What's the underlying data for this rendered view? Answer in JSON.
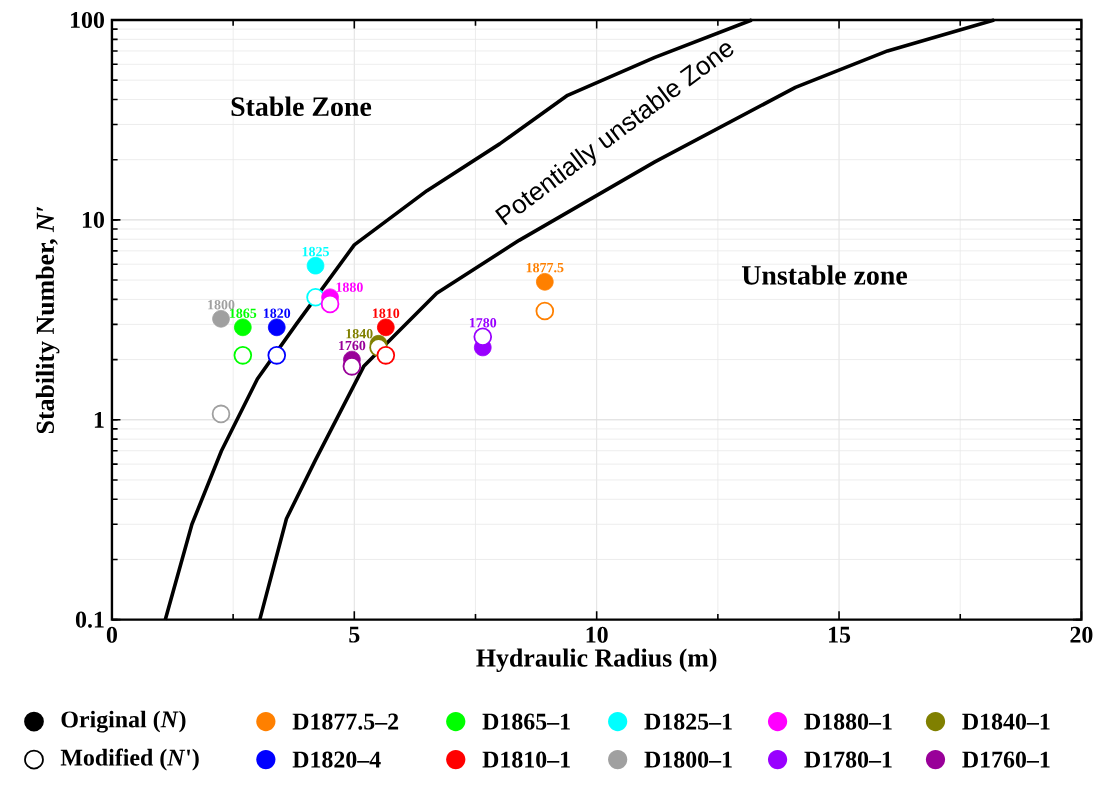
{
  "chart_data": {
    "type": "scatter",
    "xlabel": "Hydraulic Radius (m)",
    "ylabel": "Stability Number, *N*′",
    "xlim": [
      0,
      20
    ],
    "ylim": [
      0.1,
      100
    ],
    "xticks": [
      0,
      5,
      10,
      15,
      20
    ],
    "yticks": [
      0.1,
      1,
      10,
      100
    ],
    "log": "y",
    "grid": true,
    "legend": "bottom",
    "marker": "circle",
    "annotations": [
      "Original (*N*)",
      "Modified (*N*')",
      "Stable Zone",
      "Potentially unstable Zone",
      "Unstable zone",
      {
        "text": "1877.5",
        "x": 8.93,
        "y": 4.9
      },
      {
        "text": "1865",
        "x": 2.7,
        "y": 2.9
      },
      {
        "text": "1825",
        "x": 4.2,
        "y": 5.9
      },
      {
        "text": "1880",
        "x": 4.5,
        "y": 4.1
      },
      {
        "text": "1840",
        "x": 5.5,
        "y": 2.4
      },
      {
        "text": "1820",
        "x": 3.4,
        "y": 2.9
      },
      {
        "text": "1810",
        "x": 5.65,
        "y": 2.9
      },
      {
        "text": "1800",
        "x": 2.25,
        "y": 3.2
      },
      {
        "text": "1780",
        "x": 7.65,
        "y": 2.3
      },
      {
        "text": "1760",
        "x": 4.95,
        "y": 2.0
      }
    ],
    "series": [
      {
        "name": "D1877.5–2",
        "color": "#ff8000",
        "x": [
          8.93,
          8.93
        ],
        "values": [
          4.9,
          3.5
        ]
      },
      {
        "name": "D1865–1",
        "color": "#00ff00",
        "x": [
          2.7,
          2.7
        ],
        "values": [
          2.9,
          2.1
        ]
      },
      {
        "name": "D1825–1",
        "color": "#00ffff",
        "x": [
          4.2,
          4.2
        ],
        "values": [
          5.9,
          4.1
        ]
      },
      {
        "name": "D1880–1",
        "color": "#ff00ff",
        "x": [
          4.5,
          4.5
        ],
        "values": [
          4.1,
          3.8
        ]
      },
      {
        "name": "D1840–1",
        "color": "#808000",
        "x": [
          5.5,
          5.5
        ],
        "values": [
          2.4,
          2.3
        ]
      },
      {
        "name": "D1820–4",
        "color": "#0000ff",
        "x": [
          3.4,
          3.4
        ],
        "values": [
          2.9,
          2.1
        ]
      },
      {
        "name": "D1810–1",
        "color": "#ff0000",
        "x": [
          5.65,
          5.65
        ],
        "values": [
          2.9,
          2.1
        ]
      },
      {
        "name": "D1800–1",
        "color": "#a0a0a0",
        "x": [
          2.25,
          2.25
        ],
        "values": [
          3.2,
          1.07
        ]
      },
      {
        "name": "D1780–1",
        "color": "#9900ff",
        "x": [
          7.65,
          7.65
        ],
        "values": [
          2.3,
          2.6
        ]
      },
      {
        "name": "D1760–1",
        "color": "#990099",
        "x": [
          4.95,
          4.95
        ],
        "values": [
          2.0,
          1.85
        ]
      },
      {
        "type": "line",
        "marker": "none",
        "color": "#000000",
        "x": [
          1.1,
          1.65,
          2.26,
          3.0,
          3.8,
          5.0,
          6.5,
          8.0,
          9.4,
          11.2,
          13.2
        ],
        "values": [
          0.1,
          0.3,
          0.7,
          1.6,
          3.0,
          7.5,
          14,
          24,
          42,
          65,
          100
        ]
      },
      {
        "type": "line",
        "marker": "none",
        "color": "#000000",
        "x": [
          3.05,
          3.6,
          4.2,
          5.2,
          6.7,
          8.4,
          11.2,
          14.1,
          16.0,
          18.2
        ],
        "values": [
          0.1,
          0.32,
          0.63,
          1.86,
          4.3,
          7.9,
          19.5,
          46,
          70,
          100
        ]
      }
    ]
  }
}
